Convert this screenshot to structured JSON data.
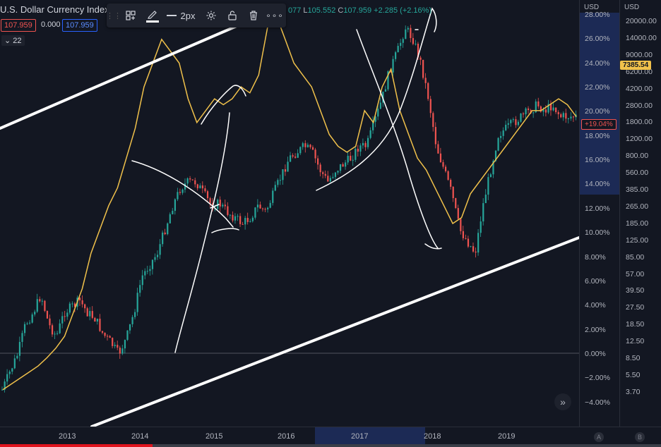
{
  "symbol": {
    "title": "U.S. Dollar Currency Index",
    "bid": "107.959",
    "spread": "0.000",
    "ask": "107.959",
    "indicators_count": "22"
  },
  "ohlc": {
    "o_value": "077",
    "l_label": "L",
    "l_value": "105.552",
    "c_label": "C",
    "c_value": "107.959",
    "change": "+2.285 (+2.16%)"
  },
  "toolbar": {
    "width_label": "2px"
  },
  "pct_axis": {
    "unit": "USD",
    "ticks": [
      "28.00%",
      "26.00%",
      "24.00%",
      "22.00%",
      "20.00%",
      "18.00%",
      "16.00%",
      "14.00%",
      "12.00%",
      "10.00%",
      "8.00%",
      "6.00%",
      "4.00%",
      "2.00%",
      "0.00%",
      "−2.00%",
      "−4.00%"
    ],
    "tag": "+19.04%"
  },
  "btc_axis": {
    "unit": "USD",
    "ticks": [
      "20000.00",
      "14000.00",
      "9000.00",
      "6200.00",
      "4200.00",
      "2800.00",
      "1800.00",
      "1200.00",
      "800.00",
      "560.00",
      "385.00",
      "265.00",
      "185.00",
      "125.00",
      "85.00",
      "57.00",
      "39.50",
      "27.50",
      "18.50",
      "12.50",
      "8.50",
      "5.50",
      "3.70"
    ],
    "tag": "7385.54"
  },
  "time_axis": {
    "labels": [
      "2013",
      "2014",
      "2015",
      "2016",
      "2017",
      "2018",
      "2019"
    ],
    "auto_label": "A",
    "log_label": "B"
  },
  "colors": {
    "up": "#26a69a",
    "down": "#ef5350",
    "comparison": "#f0c14b",
    "background": "#131722",
    "drawing": "#ffffff"
  },
  "chart_data": {
    "type": "line",
    "series": [
      {
        "values_pct": [
          -3.5,
          -2,
          -0.5,
          2,
          3,
          4.5,
          2,
          1,
          3,
          3.5,
          4,
          3,
          2.5,
          1.2,
          0.5,
          -0.5,
          0.8,
          3,
          6,
          7,
          8,
          10,
          12,
          13.5,
          14,
          14,
          13,
          12,
          12.2,
          11.5,
          11,
          10.5,
          11,
          12,
          11.5,
          13,
          14.5,
          16,
          16.5,
          17,
          16.5,
          15,
          14,
          15,
          15.5,
          16,
          17,
          17,
          19,
          21,
          23.5,
          25,
          27,
          26,
          24,
          21,
          17,
          15,
          13,
          10,
          9,
          8,
          12,
          15,
          18,
          18.5,
          19,
          19.5,
          20,
          20.5,
          20,
          20.5,
          19.5,
          19.5,
          19.5
        ]
      },
      {
        "name": "U.S. Dollar Currency Index",
        "values_pct": [
          -3.5,
          -3,
          -2.5,
          -2,
          -1.5,
          -0.8,
          0,
          1,
          3,
          5,
          8,
          10,
          12,
          13.5,
          16,
          18.5,
          22,
          24,
          26,
          25,
          24,
          21,
          19,
          20,
          21,
          20.5,
          21,
          22,
          21.5,
          23,
          27,
          28,
          26,
          24,
          23,
          22,
          20,
          18,
          17,
          16.5,
          17,
          20,
          19,
          22,
          23.5,
          20,
          18,
          16,
          15,
          13.5,
          12,
          10.5,
          11,
          13,
          14,
          15,
          16,
          17,
          18,
          19,
          20,
          20,
          20.5,
          21,
          20.5,
          19.5
        ]
      }
    ],
    "ylim": [
      -4.4,
      28.4
    ]
  }
}
